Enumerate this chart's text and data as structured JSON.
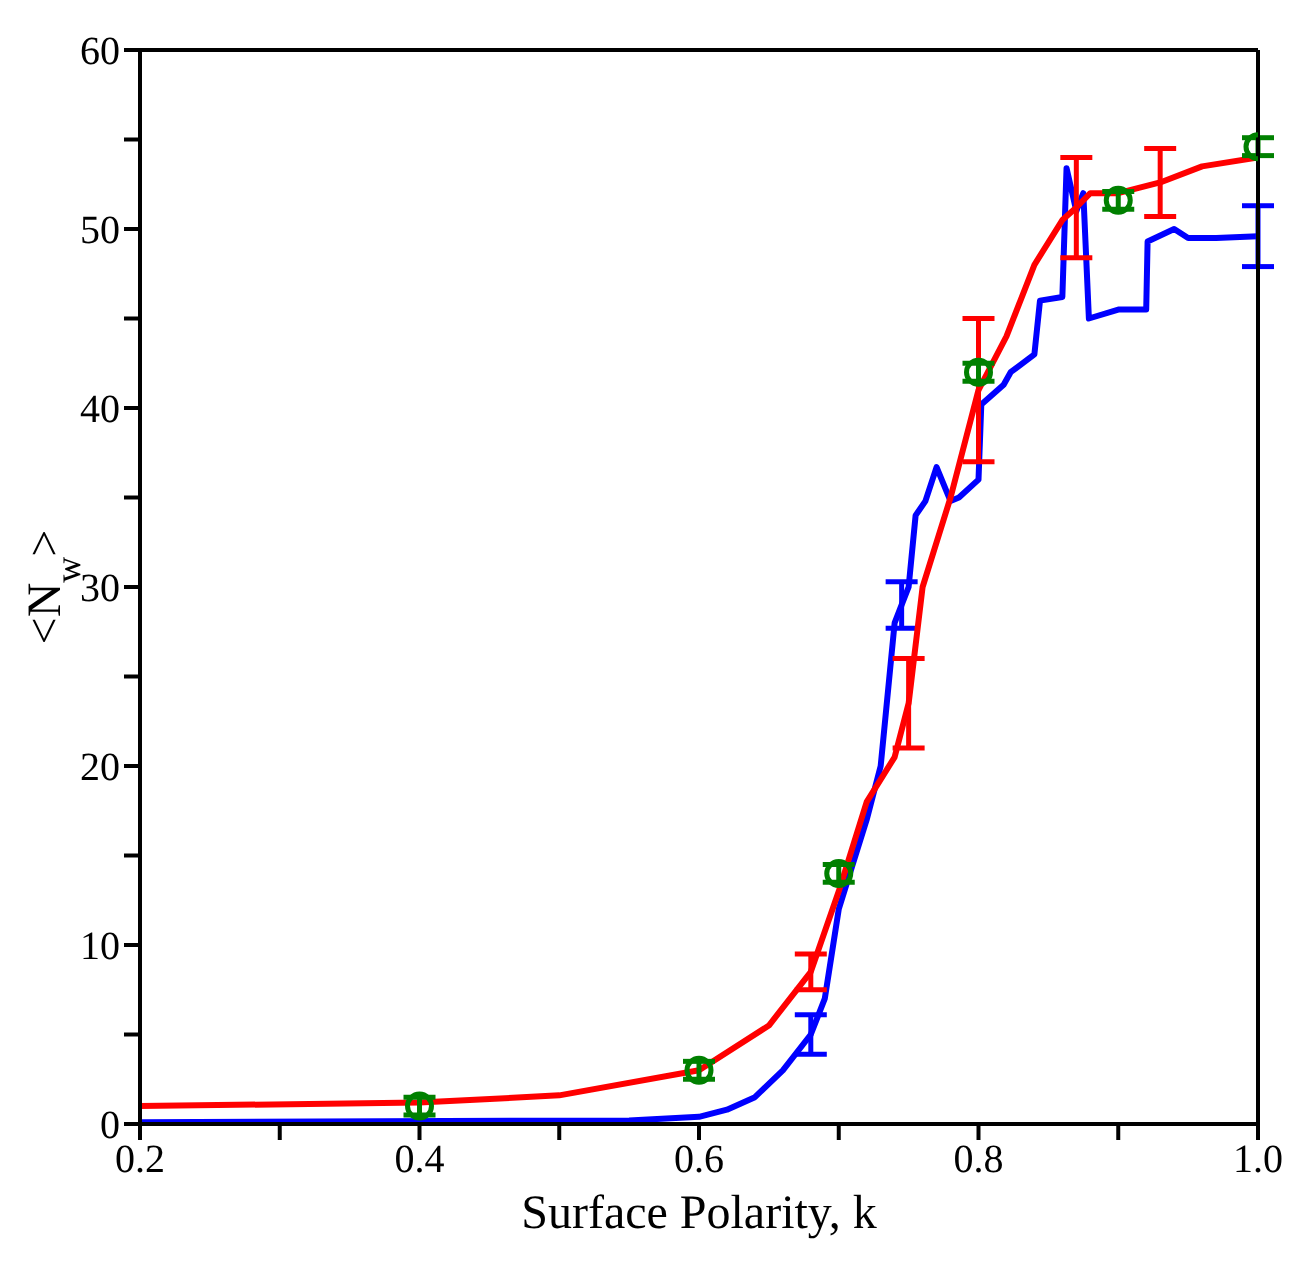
{
  "chart_data": {
    "type": "line",
    "xlabel": "Surface Polarity, k",
    "ylabel": "<N$_{w}$>",
    "xlim": [
      0.2,
      1.0
    ],
    "ylim": [
      0,
      60
    ],
    "xticks": [
      {
        "value": 0.2,
        "label": "0.2"
      },
      {
        "value": 0.3,
        "label": null
      },
      {
        "value": 0.4,
        "label": "0.4"
      },
      {
        "value": 0.5,
        "label": null
      },
      {
        "value": 0.6,
        "label": "0.6"
      },
      {
        "value": 0.7,
        "label": null
      },
      {
        "value": 0.8,
        "label": "0.8"
      },
      {
        "value": 0.9,
        "label": null
      },
      {
        "value": 1.0,
        "label": "1.0"
      }
    ],
    "yticks": [
      0,
      {
        "value": 5,
        "label": null
      },
      10,
      {
        "value": 15,
        "label": null
      },
      20,
      {
        "value": 25,
        "label": null
      },
      30,
      {
        "value": 35,
        "label": null
      },
      40,
      {
        "value": 45,
        "label": null
      },
      50,
      {
        "value": 55,
        "label": null
      },
      60
    ],
    "grid": false,
    "legend": false,
    "marker": "none",
    "line_style": "solid",
    "series": [
      {
        "color": "#0000ff",
        "x": [
          0.2,
          0.55,
          0.6,
          0.62,
          0.64,
          0.66,
          0.68,
          0.69,
          0.7,
          0.72,
          0.73,
          0.74,
          0.745,
          0.75,
          0.755,
          0.762,
          0.77,
          0.78,
          0.786,
          0.8,
          0.802,
          0.818,
          0.823,
          0.84,
          0.844,
          0.86,
          0.863,
          0.87,
          0.875,
          0.879,
          0.9,
          0.92,
          0.921,
          0.94,
          0.95,
          0.97,
          1.0
        ],
        "values": [
          0.1,
          0.2,
          0.4,
          0.8,
          1.5,
          3,
          5,
          7,
          12,
          17,
          20,
          28,
          29,
          30,
          34,
          34.8,
          36.7,
          34.8,
          35,
          36,
          40.2,
          41.3,
          42,
          43,
          46,
          46.2,
          53.4,
          51,
          52,
          45,
          45.5,
          45.5,
          49.3,
          50,
          49.5,
          49.5,
          49.6
        ],
        "errors": [
          null,
          null,
          null,
          null,
          null,
          null,
          1.1,
          null,
          null,
          null,
          null,
          null,
          1.3,
          null,
          null,
          null,
          null,
          null,
          null,
          null,
          null,
          null,
          null,
          null,
          null,
          null,
          null,
          null,
          null,
          null,
          null,
          null,
          null,
          null,
          null,
          null,
          1.7
        ]
      },
      {
        "color": "#ff0000",
        "x": [
          0.2,
          0.4,
          0.5,
          0.6,
          0.65,
          0.68,
          0.7,
          0.72,
          0.74,
          0.75,
          0.76,
          0.78,
          0.8,
          0.82,
          0.84,
          0.86,
          0.87,
          0.88,
          0.9,
          0.93,
          0.96,
          1.0
        ],
        "values": [
          1,
          1.2,
          1.6,
          3,
          5.5,
          8.5,
          13,
          18,
          20.5,
          23.5,
          30,
          35,
          41,
          44,
          48,
          50.5,
          51.2,
          52,
          52,
          52.6,
          53.5,
          54
        ],
        "errors": [
          null,
          null,
          null,
          null,
          null,
          1,
          null,
          null,
          null,
          2.5,
          null,
          null,
          4,
          null,
          null,
          null,
          2.8,
          null,
          null,
          1.9,
          null,
          null
        ]
      },
      {
        "type": "scatter",
        "marker": "circle",
        "color": "#008000",
        "x": [
          0.4,
          0.6,
          0.7,
          0.8,
          0.9,
          1.0
        ],
        "values": [
          1,
          3,
          14,
          42,
          51.6,
          54.6
        ],
        "errors": [
          0.5,
          0.5,
          0.5,
          0.5,
          0.5,
          0.5
        ]
      }
    ]
  }
}
